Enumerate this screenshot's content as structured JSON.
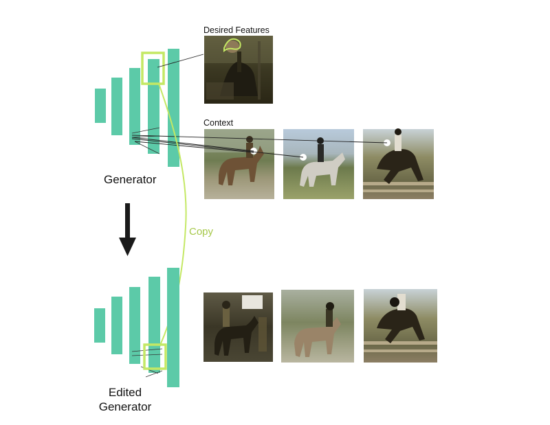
{
  "labels": {
    "desired_features": "Desired Features",
    "context": "Context",
    "generator": "Generator",
    "copy": "Copy",
    "edited_line1": "Edited",
    "edited_line2": "Generator"
  },
  "colors": {
    "layer": "#5ccaa8",
    "highlight": "#c4e864",
    "copy_text": "#a6c84a",
    "arrow": "#1a1a1a",
    "background": "#ffffff"
  }
}
